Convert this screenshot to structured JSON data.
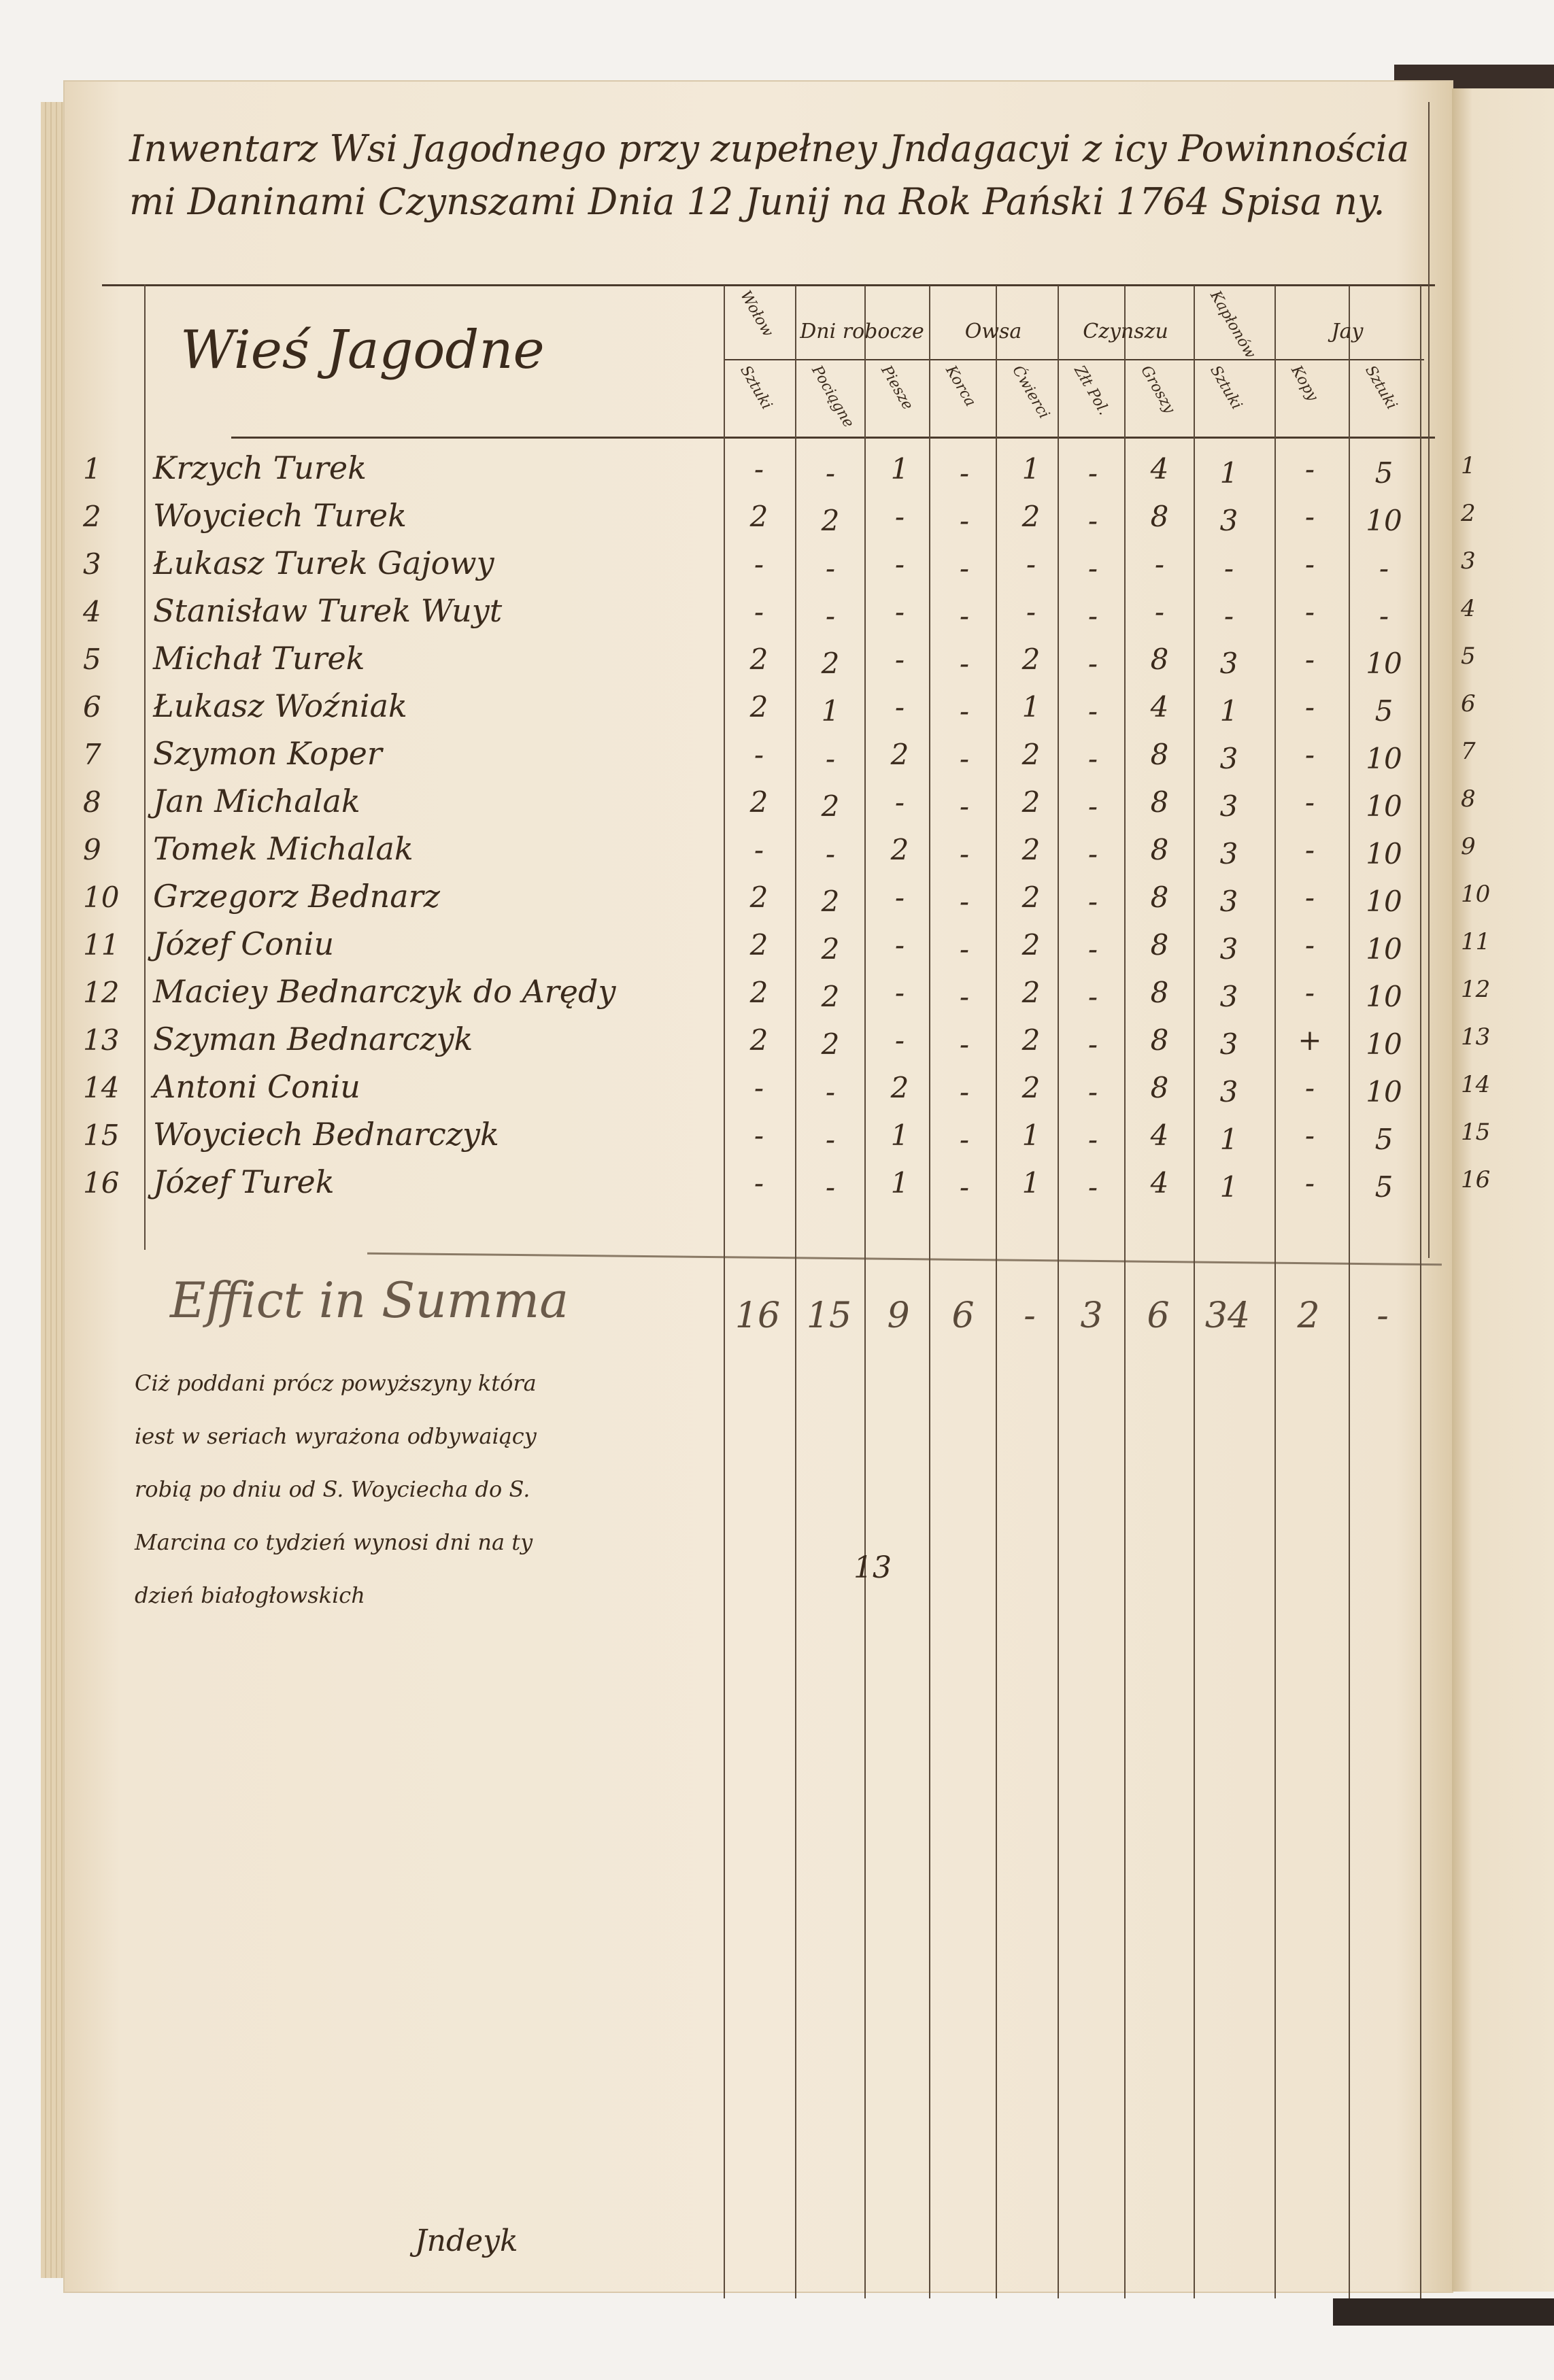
{
  "title": "Inwentarz Wsi Jagodnego przy zupełney Jndagacyi z icy Powinnościa mi Daninami Czynszami Dnia 12 Junij na Rok Pański 1764 Spisa ny.",
  "village_heading": "Wieś Jagodne",
  "column_groups": [
    {
      "label": "Wołow",
      "sub": [
        "Sztuki"
      ]
    },
    {
      "label": "Dni robocze",
      "sub": [
        "Pociągne",
        "Piesze"
      ]
    },
    {
      "label": "Owsa",
      "sub": [
        "Korca",
        "Ćwierci"
      ]
    },
    {
      "label": "Czynszu",
      "sub": [
        "Złt Pol.",
        "Groszy"
      ]
    },
    {
      "label": "Kapłonów",
      "sub": [
        "Sztuki"
      ]
    },
    {
      "label": "Jay",
      "sub": [
        "Kopy",
        "Sztuki"
      ]
    }
  ],
  "rows": [
    {
      "no": "1",
      "name": "Krzych Turek",
      "values": [
        "-",
        "-",
        "1",
        "-",
        "1",
        "-",
        "4",
        "1",
        "-",
        "5"
      ]
    },
    {
      "no": "2",
      "name": "Woyciech Turek",
      "values": [
        "2",
        "2",
        "-",
        "-",
        "2",
        "-",
        "8",
        "3",
        "-",
        "10"
      ]
    },
    {
      "no": "3",
      "name": "Łukasz Turek Gajowy",
      "values": [
        "-",
        "-",
        "-",
        "-",
        "-",
        "-",
        "-",
        "-",
        "-",
        "-"
      ]
    },
    {
      "no": "4",
      "name": "Stanisław Turek Wuyt",
      "values": [
        "-",
        "-",
        "-",
        "-",
        "-",
        "-",
        "-",
        "-",
        "-",
        "-"
      ]
    },
    {
      "no": "5",
      "name": "Michał Turek",
      "values": [
        "2",
        "2",
        "-",
        "-",
        "2",
        "-",
        "8",
        "3",
        "-",
        "10"
      ]
    },
    {
      "no": "6",
      "name": "Łukasz Woźniak",
      "values": [
        "2",
        "1",
        "-",
        "-",
        "1",
        "-",
        "4",
        "1",
        "-",
        "5"
      ]
    },
    {
      "no": "7",
      "name": "Szymon Koper",
      "values": [
        "-",
        "-",
        "2",
        "-",
        "2",
        "-",
        "8",
        "3",
        "-",
        "10"
      ]
    },
    {
      "no": "8",
      "name": "Jan Michalak",
      "values": [
        "2",
        "2",
        "-",
        "-",
        "2",
        "-",
        "8",
        "3",
        "-",
        "10"
      ]
    },
    {
      "no": "9",
      "name": "Tomek Michalak",
      "values": [
        "-",
        "-",
        "2",
        "-",
        "2",
        "-",
        "8",
        "3",
        "-",
        "10"
      ]
    },
    {
      "no": "10",
      "name": "Grzegorz Bednarz",
      "values": [
        "2",
        "2",
        "-",
        "-",
        "2",
        "-",
        "8",
        "3",
        "-",
        "10"
      ]
    },
    {
      "no": "11",
      "name": "Józef Coniu",
      "values": [
        "2",
        "2",
        "-",
        "-",
        "2",
        "-",
        "8",
        "3",
        "-",
        "10"
      ]
    },
    {
      "no": "12",
      "name": "Maciey Bednarczyk do Arędy",
      "values": [
        "2",
        "2",
        "-",
        "-",
        "2",
        "-",
        "8",
        "3",
        "-",
        "10"
      ]
    },
    {
      "no": "13",
      "name": "Szyman Bednarczyk",
      "values": [
        "2",
        "2",
        "-",
        "-",
        "2",
        "-",
        "8",
        "3",
        "+",
        "10"
      ]
    },
    {
      "no": "14",
      "name": "Antoni Coniu",
      "values": [
        "-",
        "-",
        "2",
        "-",
        "2",
        "-",
        "8",
        "3",
        "-",
        "10"
      ]
    },
    {
      "no": "15",
      "name": "Woyciech Bednarczyk",
      "values": [
        "-",
        "-",
        "1",
        "-",
        "1",
        "-",
        "4",
        "1",
        "-",
        "5"
      ]
    },
    {
      "no": "16",
      "name": "Józef Turek",
      "values": [
        "-",
        "-",
        "1",
        "-",
        "1",
        "-",
        "4",
        "1",
        "-",
        "5"
      ]
    }
  ],
  "summa": {
    "label": "Effict in Summa",
    "values": [
      "16",
      "15",
      "9",
      "6",
      "-",
      "3",
      "6",
      "34",
      "2",
      "-"
    ]
  },
  "note": {
    "lines": [
      "Ciż poddani prócz powyższyny która",
      "iest w seriach wyrażona odbywaiący",
      "robią po dniu od S. Woyciecha do S.",
      "Marcina co tydzień wynosi dni na ty",
      "dzień białogłowskich"
    ],
    "value": "13"
  },
  "signature": "Jndeyk",
  "right_page_row_numbers": [
    "1",
    "2",
    "3",
    "4",
    "5",
    "6",
    "7",
    "8",
    "9",
    "10",
    "11",
    "12",
    "13",
    "14",
    "15",
    "16"
  ]
}
